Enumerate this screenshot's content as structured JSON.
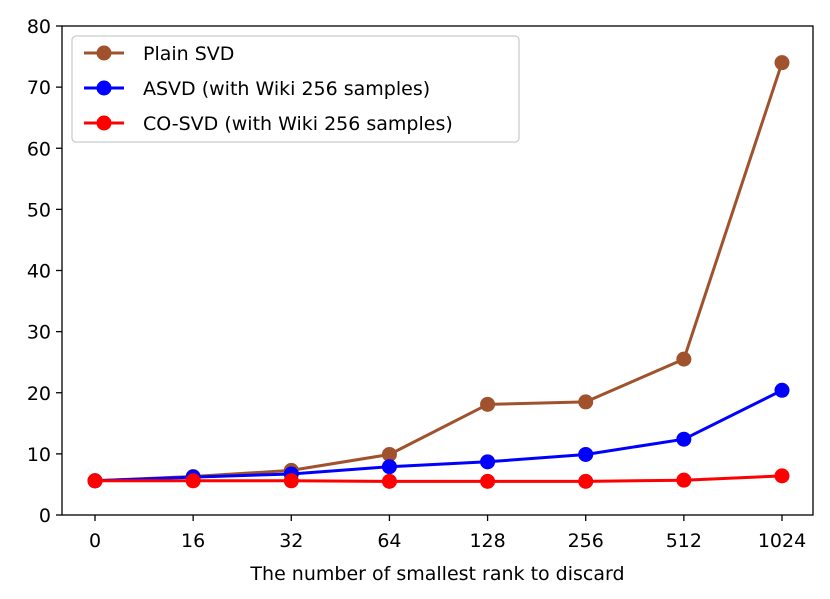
{
  "chart_data": {
    "type": "line",
    "title": "",
    "xlabel": "The number of smallest rank to discard",
    "ylabel": "",
    "categories": [
      "0",
      "16",
      "32",
      "64",
      "128",
      "256",
      "512",
      "1024"
    ],
    "ylim": [
      0,
      80
    ],
    "yticks": [
      0,
      10,
      20,
      30,
      40,
      50,
      60,
      70,
      80
    ],
    "legend_position": "top-left",
    "grid": false,
    "series": [
      {
        "name": "Plain SVD",
        "color": "#a0522d",
        "values": [
          5.6,
          6.3,
          7.3,
          9.9,
          18.1,
          18.5,
          25.5,
          74.0
        ]
      },
      {
        "name": "ASVD (with Wiki 256 samples)",
        "color": "#0000ff",
        "values": [
          5.6,
          6.2,
          6.7,
          7.9,
          8.7,
          9.9,
          12.4,
          20.4
        ]
      },
      {
        "name": "CO-SVD (with Wiki 256 samples)",
        "color": "#ff0000",
        "values": [
          5.6,
          5.6,
          5.6,
          5.5,
          5.5,
          5.5,
          5.7,
          6.4
        ]
      }
    ]
  }
}
